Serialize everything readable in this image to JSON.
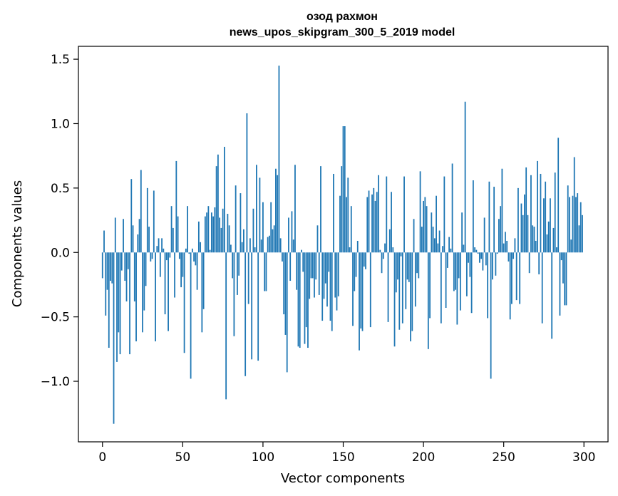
{
  "chart_data": {
    "type": "bar",
    "title_line1": "озод рахмон",
    "title_line2": "news_upos_skipgram_300_5_2019 model",
    "xlabel": "Vector components",
    "ylabel": "Components values",
    "xlim": [
      -15,
      315
    ],
    "ylim": [
      -1.47,
      1.6
    ],
    "xticks": [
      0,
      50,
      100,
      150,
      200,
      250,
      300
    ],
    "xtick_labels": [
      "0",
      "50",
      "100",
      "150",
      "200",
      "250",
      "300"
    ],
    "yticks": [
      -1.0,
      -0.5,
      0.0,
      0.5,
      1.0,
      1.5
    ],
    "ytick_labels": [
      "−1.0",
      "−0.5",
      "0.0",
      "0.5",
      "1.0",
      "1.5"
    ],
    "bar_color": "#1f77b4",
    "values": [
      -0.2,
      0.17,
      -0.49,
      -0.29,
      -0.74,
      -0.22,
      -0.24,
      -1.33,
      0.27,
      -0.85,
      -0.62,
      -0.79,
      -0.14,
      0.26,
      -0.22,
      -0.38,
      -0.13,
      -0.79,
      0.57,
      0.21,
      -0.38,
      -0.69,
      0.14,
      0.26,
      0.64,
      -0.62,
      -0.45,
      -0.26,
      0.5,
      0.2,
      -0.07,
      -0.05,
      0.48,
      -0.69,
      0.05,
      0.11,
      -0.19,
      0.11,
      0.03,
      -0.48,
      -0.06,
      -0.61,
      -0.04,
      0.36,
      0.19,
      -0.35,
      0.71,
      0.28,
      -0.05,
      -0.27,
      -0.19,
      -0.78,
      0.03,
      0.36,
      -0.01,
      -0.98,
      0.03,
      -0.07,
      -0.1,
      -0.29,
      0.24,
      0.08,
      -0.62,
      -0.44,
      0.28,
      0.31,
      0.36,
      0.02,
      0.31,
      0.28,
      0.35,
      0.67,
      0.76,
      0.27,
      0.19,
      0.34,
      0.82,
      -1.14,
      0.3,
      0.21,
      0.06,
      -0.2,
      -0.65,
      0.52,
      -0.33,
      -0.18,
      0.46,
      0.08,
      0.18,
      -0.96,
      1.08,
      -0.4,
      0.11,
      -0.83,
      0.34,
      0.04,
      0.68,
      -0.84,
      0.58,
      0.1,
      0.39,
      -0.3,
      -0.3,
      0.12,
      0.13,
      0.39,
      0.18,
      0.21,
      0.65,
      0.6,
      1.45,
      0.11,
      -0.07,
      -0.48,
      -0.64,
      -0.93,
      0.27,
      -0.22,
      0.32,
      0.1,
      0.68,
      -0.29,
      -0.73,
      -0.74,
      0.02,
      -0.15,
      -0.71,
      -0.58,
      -0.74,
      -0.36,
      -0.2,
      -0.2,
      -0.35,
      -0.21,
      0.21,
      -0.33,
      0.67,
      -0.53,
      -0.36,
      -0.24,
      -0.42,
      -0.15,
      -0.53,
      -0.61,
      0.61,
      -0.35,
      -0.45,
      -0.34,
      0.44,
      0.67,
      0.98,
      0.98,
      0.43,
      0.58,
      0.04,
      0.36,
      -0.57,
      -0.3,
      -0.19,
      0.09,
      -0.76,
      -0.59,
      -0.61,
      -0.11,
      -0.13,
      0.43,
      0.48,
      -0.58,
      0.45,
      0.5,
      0.4,
      0.47,
      0.6,
      0.02,
      -0.16,
      -0.05,
      0.07,
      0.59,
      -0.54,
      0.18,
      0.47,
      0.04,
      -0.73,
      -0.31,
      -0.21,
      -0.6,
      -0.03,
      -0.55,
      0.59,
      -0.44,
      -0.21,
      -0.23,
      -0.69,
      -0.61,
      0.26,
      -0.42,
      -0.16,
      -0.2,
      0.63,
      0.2,
      0.4,
      0.43,
      0.36,
      -0.75,
      -0.51,
      0.31,
      0.2,
      0.11,
      0.44,
      0.07,
      0.17,
      -0.55,
      0.05,
      0.59,
      -0.43,
      -0.12,
      0.12,
      0.03,
      0.69,
      -0.3,
      -0.29,
      -0.56,
      -0.2,
      -0.45,
      0.31,
      0.06,
      1.17,
      -0.34,
      -0.08,
      -0.19,
      -0.47,
      0.56,
      0.04,
      0.02,
      -0.01,
      -0.08,
      -0.05,
      -0.14,
      0.27,
      -0.1,
      -0.51,
      0.55,
      -0.98,
      -0.21,
      0.51,
      -0.18,
      -0.01,
      0.26,
      0.36,
      0.65,
      0.07,
      0.16,
      0.09,
      -0.07,
      -0.52,
      -0.4,
      -0.05,
      0.11,
      -0.37,
      0.5,
      -0.4,
      0.38,
      0.29,
      0.45,
      0.66,
      0.29,
      -0.16,
      0.6,
      0.21,
      0.2,
      0.09,
      0.71,
      -0.17,
      0.61,
      -0.55,
      0.42,
      0.55,
      0.14,
      0.24,
      0.42,
      -0.67,
      0.19,
      0.62,
      0.04,
      0.89,
      -0.49,
      -0.06,
      -0.24,
      -0.41,
      -0.41,
      0.52,
      0.43,
      0.1,
      0.44,
      0.74,
      0.43,
      0.46,
      0.21,
      0.39,
      0.29
    ]
  }
}
